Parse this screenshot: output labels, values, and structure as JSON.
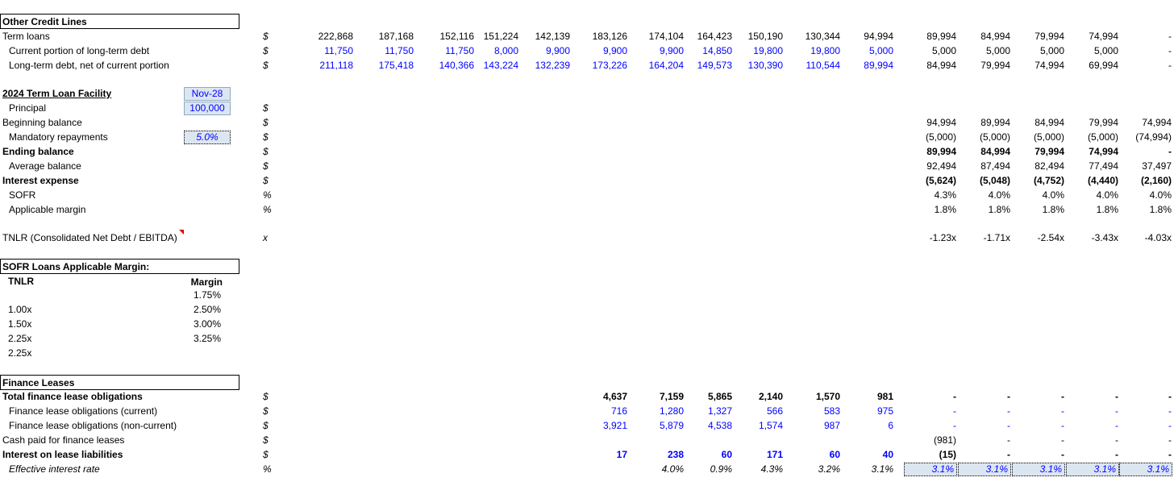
{
  "colors": {
    "input_blue": "#0000ff",
    "input_fill": "#dce6f1",
    "comment_red": "#e00000"
  },
  "section_other": {
    "title": "Other Credit Lines",
    "rows": [
      {
        "label": "Term loans",
        "unit": "$",
        "values": [
          "222,868",
          "187,168",
          "152,116",
          "151,224",
          "142,139",
          "183,126",
          "174,104",
          "164,423",
          "150,190",
          "130,344",
          "94,994",
          "89,994",
          "84,994",
          "79,994",
          "74,994",
          "-"
        ]
      },
      {
        "label": "Current portion of long-term debt",
        "unit": "$",
        "values": [
          "11,750",
          "11,750",
          "11,750",
          "8,000",
          "9,900",
          "9,900",
          "9,900",
          "14,850",
          "19,800",
          "19,800",
          "5,000",
          "5,000",
          "5,000",
          "5,000",
          "5,000",
          "-"
        ]
      },
      {
        "label": "Long-term debt, net of current portion",
        "unit": "$",
        "values": [
          "211,118",
          "175,418",
          "140,366",
          "143,224",
          "132,239",
          "173,226",
          "164,204",
          "149,573",
          "130,390",
          "110,544",
          "89,994",
          "84,994",
          "79,994",
          "74,994",
          "69,994",
          "-"
        ]
      }
    ]
  },
  "section_tlf": {
    "title": "2024 Term Loan Facility",
    "maturity": "Nov-28",
    "principal_label": "Principal",
    "principal_unit": "$",
    "principal": "100,000",
    "rows": [
      {
        "label": "Beginning balance",
        "unit": "$",
        "values": [
          "94,994",
          "89,994",
          "84,994",
          "79,994",
          "74,994"
        ]
      },
      {
        "label": "Mandatory repayments",
        "unit": "$",
        "input": "5.0%",
        "values": [
          "(5,000)",
          "(5,000)",
          "(5,000)",
          "(5,000)",
          "(74,994)"
        ]
      },
      {
        "label": "Ending balance",
        "unit": "$",
        "values": [
          "89,994",
          "84,994",
          "79,994",
          "74,994",
          "-"
        ]
      },
      {
        "label": "Average balance",
        "unit": "$",
        "values": [
          "92,494",
          "87,494",
          "82,494",
          "77,494",
          "37,497"
        ]
      },
      {
        "label": "Interest expense",
        "unit": "$",
        "values": [
          "(5,624)",
          "(5,048)",
          "(4,752)",
          "(4,440)",
          "(2,160)"
        ]
      },
      {
        "label": "SOFR",
        "unit": "%",
        "values": [
          "4.3%",
          "4.0%",
          "4.0%",
          "4.0%",
          "4.0%"
        ]
      },
      {
        "label": "Applicable margin",
        "unit": "%",
        "values": [
          "1.8%",
          "1.8%",
          "1.8%",
          "1.8%",
          "1.8%"
        ]
      }
    ],
    "tnlr": {
      "label": "TNLR (Consolidated Net Debt / EBITDA)",
      "unit": "x",
      "values": [
        "-1.23x",
        "-1.71x",
        "-2.54x",
        "-3.43x",
        "-4.03x"
      ]
    }
  },
  "section_sofr": {
    "title": "SOFR Loans Applicable Margin:",
    "col_tnlr": "TNLR",
    "col_margin": "Margin",
    "rows": [
      {
        "tnlr": "",
        "margin": "1.75%"
      },
      {
        "tnlr": "1.00x",
        "margin": "2.50%"
      },
      {
        "tnlr": "1.50x",
        "margin": "3.00%"
      },
      {
        "tnlr": "2.25x",
        "margin": "3.25%"
      },
      {
        "tnlr": "2.25x",
        "margin": ""
      }
    ]
  },
  "section_fl": {
    "title": "Finance Leases",
    "rows": [
      {
        "label": "Total finance lease obligations",
        "unit": "$",
        "values": [
          "4,637",
          "7,159",
          "5,865",
          "2,140",
          "1,570",
          "981",
          "-",
          "-",
          "-",
          "-",
          "-"
        ]
      },
      {
        "label": "Finance lease obligations (current)",
        "unit": "$",
        "values": [
          "716",
          "1,280",
          "1,327",
          "566",
          "583",
          "975",
          "-",
          "-",
          "-",
          "-",
          "-"
        ]
      },
      {
        "label": "Finance lease obligations (non-current)",
        "unit": "$",
        "values": [
          "3,921",
          "5,879",
          "4,538",
          "1,574",
          "987",
          "6",
          "-",
          "-",
          "-",
          "-",
          "-"
        ]
      },
      {
        "label": "Cash paid for finance leases",
        "unit": "$",
        "values": [
          "",
          "",
          "",
          "",
          "",
          "",
          "(981)",
          "-",
          "-",
          "-",
          "-"
        ]
      },
      {
        "label": "Interest on lease liabilities",
        "unit": "$",
        "values": [
          "17",
          "238",
          "60",
          "171",
          "60",
          "40",
          "(15)",
          "-",
          "-",
          "-",
          "-"
        ]
      },
      {
        "label": "Effective interest rate",
        "unit": "%",
        "values": [
          "",
          "4.0%",
          "0.9%",
          "4.3%",
          "3.2%",
          "3.1%",
          "3.1%",
          "3.1%",
          "3.1%",
          "3.1%",
          "3.1%"
        ]
      }
    ]
  }
}
